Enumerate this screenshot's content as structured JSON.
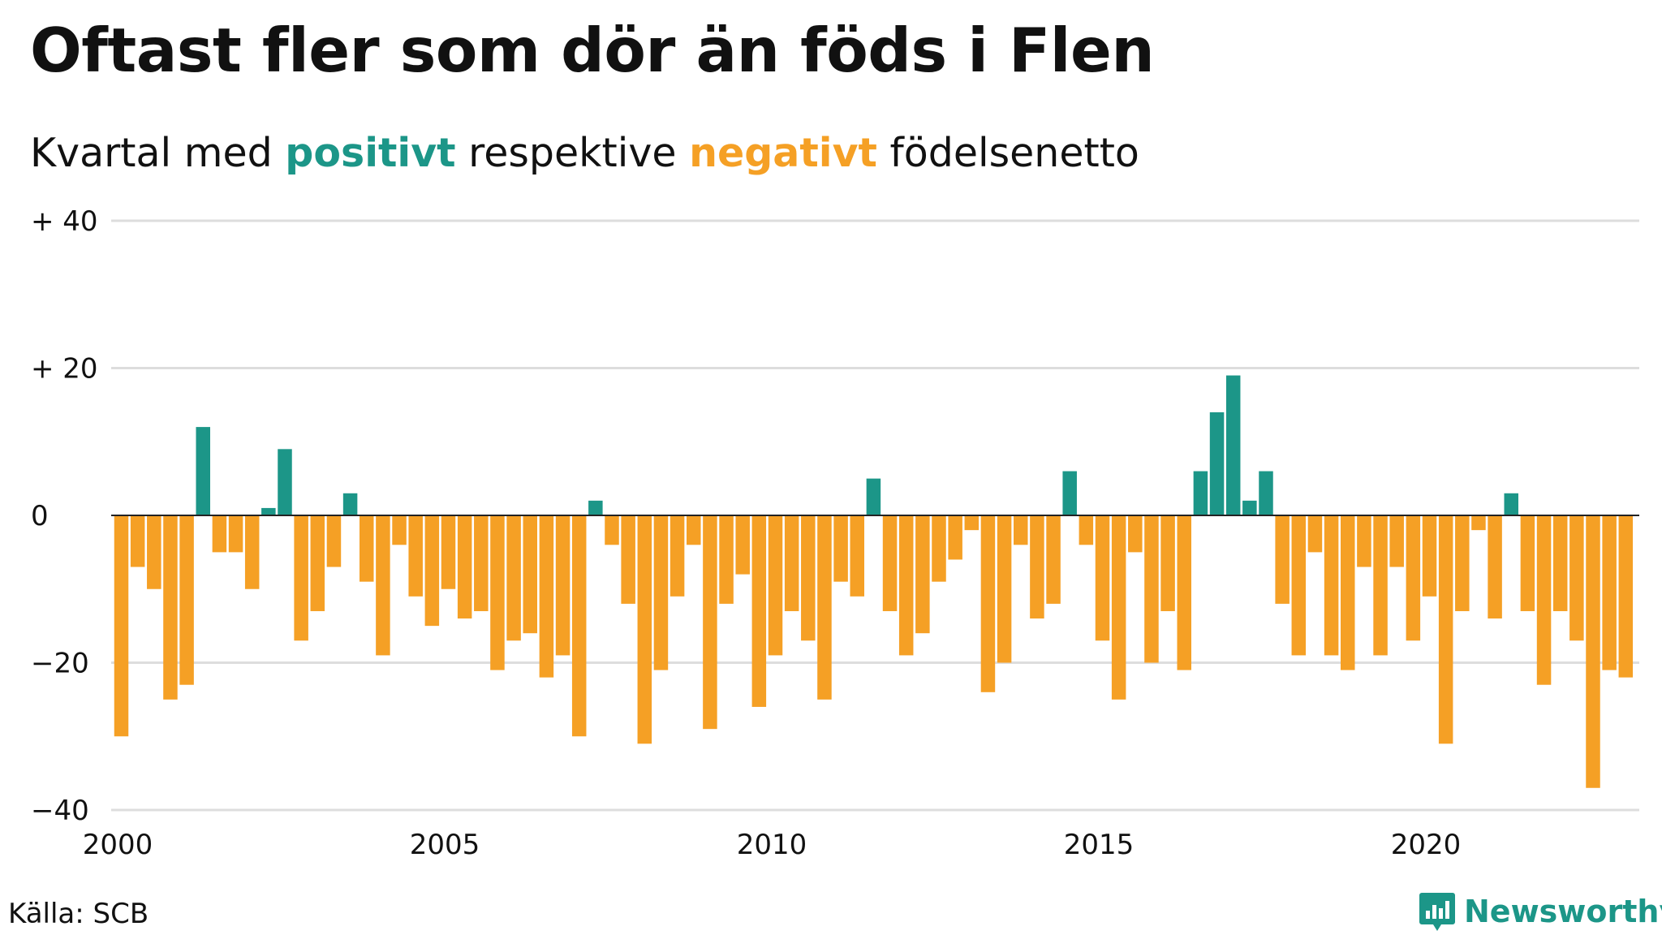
{
  "header": {
    "title": "Oftast fler som dör än föds i Flen",
    "subtitle_parts": [
      "Kvartal med ",
      "positivt",
      " respektive ",
      "negativt",
      " födelsenetto"
    ]
  },
  "footer": {
    "source": "Källa: SCB",
    "brand": "Newsworthy"
  },
  "colors": {
    "positive": "#1c9688",
    "negative": "#f5a025",
    "grid": "#dddddd",
    "zero_line": "#222222"
  },
  "chart_data": {
    "type": "bar",
    "ylim": [
      -40,
      40
    ],
    "grid": true,
    "y_ticks": [
      {
        "value": 40,
        "label": "+ 40"
      },
      {
        "value": 20,
        "label": "+ 20"
      },
      {
        "value": 0,
        "label": "0"
      },
      {
        "value": -20,
        "label": "−20"
      },
      {
        "value": -40,
        "label": "−40"
      }
    ],
    "x_ticks": [
      {
        "year": 2000,
        "label": "2000"
      },
      {
        "year": 2005,
        "label": "2005"
      },
      {
        "year": 2010,
        "label": "2010"
      },
      {
        "year": 2015,
        "label": "2015"
      },
      {
        "year": 2020,
        "label": "2020"
      }
    ],
    "period_start": "2000 Q1",
    "frequency": "quarterly",
    "values": [
      -30,
      -7,
      -10,
      -25,
      -23,
      12,
      -5,
      -5,
      -10,
      1,
      9,
      -17,
      -13,
      -7,
      3,
      -9,
      -19,
      -4,
      -11,
      -15,
      -10,
      -14,
      -13,
      -21,
      -17,
      -16,
      -22,
      -19,
      -30,
      2,
      -4,
      -12,
      -31,
      -21,
      -11,
      -4,
      -29,
      -12,
      -8,
      -26,
      -19,
      -13,
      -17,
      -25,
      -9,
      -11,
      5,
      -13,
      -19,
      -16,
      -9,
      -6,
      -2,
      -24,
      -20,
      -4,
      -14,
      -12,
      6,
      -4,
      -17,
      -25,
      -5,
      -20,
      -13,
      -21,
      6,
      14,
      19,
      2,
      6,
      -12,
      -19,
      -5,
      -19,
      -21,
      -7,
      -19,
      -7,
      -17,
      -11,
      -31,
      -13,
      -2,
      -14,
      3,
      -13,
      -23,
      -13,
      -17,
      -37,
      -21,
      -22
    ]
  }
}
